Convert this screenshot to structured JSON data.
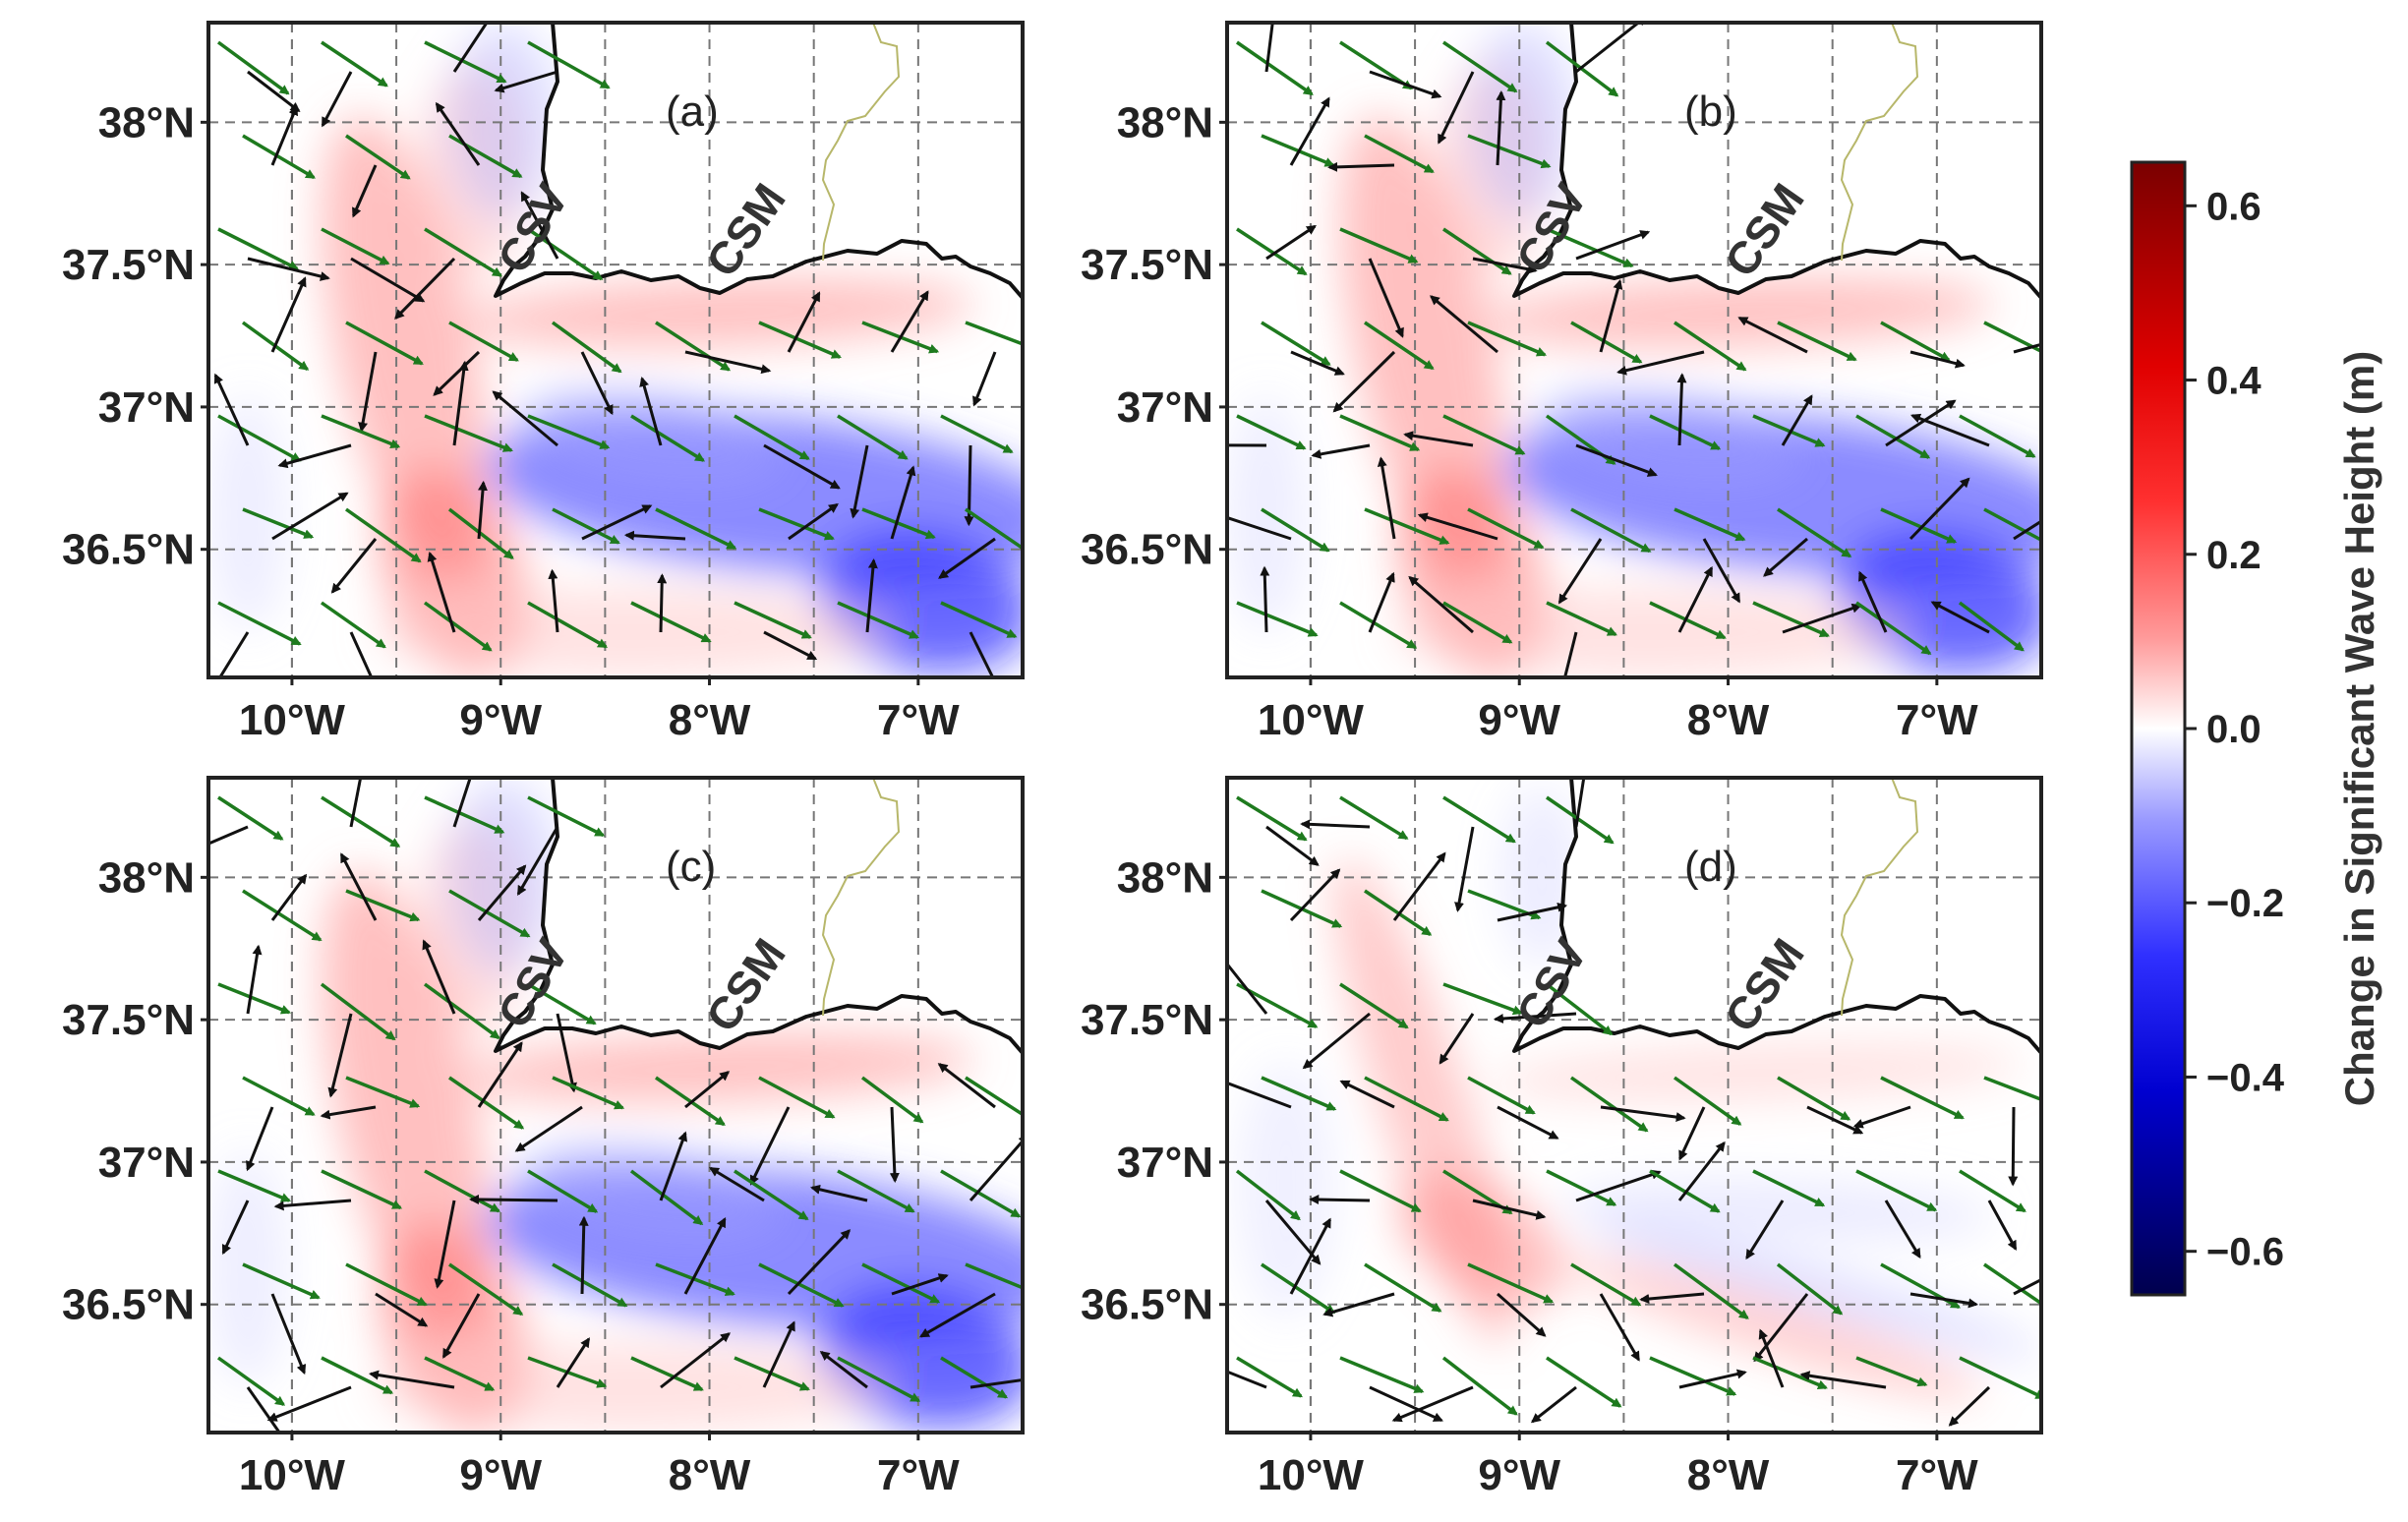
{
  "figure": {
    "panels": [
      {
        "id": "a",
        "label": "(a)"
      },
      {
        "id": "b",
        "label": "(b)"
      },
      {
        "id": "c",
        "label": "(c)"
      },
      {
        "id": "d",
        "label": "(d)"
      }
    ],
    "place_labels": {
      "csv": "CSV",
      "csm": "CSM"
    },
    "lat_labels": [
      "38°N",
      "37.5°N",
      "37°N",
      "36.5°N"
    ],
    "lon_labels": [
      "10°W",
      "9°W",
      "8°W",
      "7°W"
    ],
    "colorbar": {
      "title": "Change in Significant Wave Height (m)",
      "ticks": [
        "0.6",
        "0.4",
        "0.2",
        "0.0",
        "−0.2",
        "−0.4",
        "−0.6"
      ],
      "range": [
        -0.65,
        0.65
      ],
      "colormap": "seismic",
      "colors": {
        "max": "#800000",
        "pos": "#ff0000",
        "zero": "#ffffff",
        "neg": "#0000ff",
        "min": "#00004d"
      }
    },
    "vector_colors": {
      "green": "#1e7a1e",
      "black": "#111111"
    }
  },
  "chart_data": {
    "type": "heatmap",
    "description_fields": "four map panels of change in significant wave height with wave-direction arrows",
    "lon_range": [
      -10.4,
      -6.5
    ],
    "lat_range": [
      36.05,
      38.35
    ],
    "lat_ticks": [
      38.0,
      37.5,
      37.0,
      36.5
    ],
    "lon_ticks": [
      -10,
      -9,
      -8,
      -7
    ],
    "value_range": [
      -0.65,
      0.65
    ],
    "panels": [
      "(a)",
      "(b)",
      "(c)",
      "(d)"
    ]
  }
}
